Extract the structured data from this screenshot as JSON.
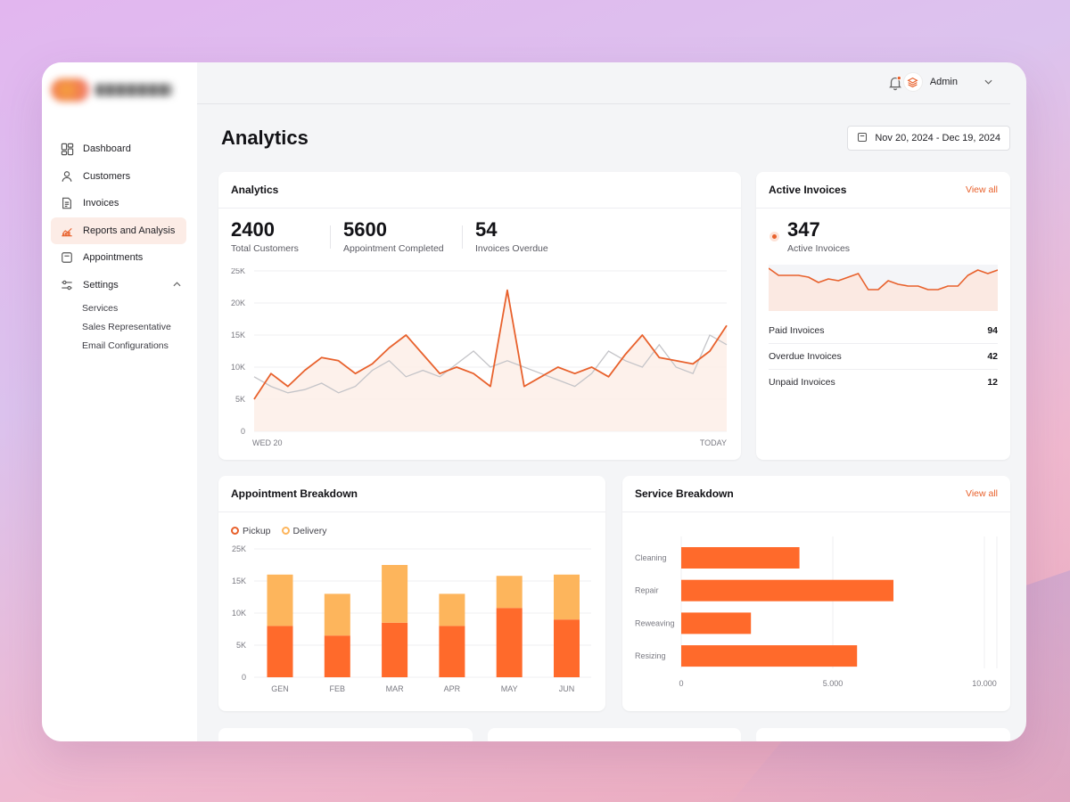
{
  "sidebar": {
    "items": [
      {
        "label": "Dashboard",
        "icon": "dashboard-icon"
      },
      {
        "label": "Customers",
        "icon": "user-icon"
      },
      {
        "label": "Invoices",
        "icon": "invoice-icon"
      },
      {
        "label": "Reports and Analysis",
        "icon": "chart-icon"
      },
      {
        "label": "Appointments",
        "icon": "calendar-icon"
      }
    ],
    "settings": {
      "label": "Settings",
      "subitems": [
        "Services",
        "Sales Representative",
        "Email Configurations"
      ]
    }
  },
  "header": {
    "user": "Admin"
  },
  "page": {
    "title": "Analytics",
    "date_range": "Nov 20, 2024 - Dec 19, 2024"
  },
  "analytics": {
    "title": "Analytics",
    "stats": [
      {
        "value": "2400",
        "label": "Total Customers"
      },
      {
        "value": "5600",
        "label": "Appointment Completed"
      },
      {
        "value": "54",
        "label": "Invoices Overdue"
      }
    ]
  },
  "active_invoices": {
    "title": "Active Invoices",
    "view_all": "View all",
    "count": "347",
    "count_label": "Active Invoices",
    "rows": [
      {
        "label": "Paid Invoices",
        "value": "94"
      },
      {
        "label": "Overdue Invoices",
        "value": "42"
      },
      {
        "label": "Unpaid Invoices",
        "value": "12"
      }
    ]
  },
  "appointment_breakdown": {
    "title": "Appointment Breakdown",
    "legend": [
      "Pickup",
      "Delivery"
    ]
  },
  "service_breakdown": {
    "title": "Service Breakdown",
    "view_all": "View all"
  },
  "colors": {
    "accent": "#e8612c",
    "bar_primary": "#ff6a2b",
    "bar_secondary": "#fdb55c",
    "muted_line": "#c4c4c8"
  },
  "chart_data": [
    {
      "type": "line",
      "title": "",
      "x_labels": [
        "WED 20",
        "TODAY"
      ],
      "yticks": [
        "25K",
        "20K",
        "15K",
        "10K",
        "5K",
        "0"
      ],
      "ylim": [
        0,
        25000
      ],
      "grid": true,
      "series": [
        {
          "values": [
            5000,
            9000,
            7000,
            9500,
            11500,
            11000,
            9000,
            10500,
            13000,
            15000,
            12000,
            9000,
            10000,
            9000,
            7000,
            22000,
            7000,
            8500,
            10000,
            9000,
            10000,
            8500,
            12000,
            15000,
            11500,
            11000,
            10500,
            12500,
            16500
          ]
        },
        {
          "values": [
            8500,
            7000,
            6000,
            6500,
            7500,
            6000,
            7000,
            9500,
            11000,
            8500,
            9500,
            8500,
            10500,
            12500,
            10000,
            11000,
            10000,
            9000,
            8000,
            7000,
            9000,
            12500,
            11000,
            10000,
            13500,
            10000,
            9000,
            15000,
            13500
          ]
        }
      ]
    },
    {
      "type": "area",
      "title": "",
      "series": [
        {
          "values": [
            24,
            20,
            20,
            20,
            19,
            16,
            18,
            17,
            19,
            21,
            12,
            12,
            17,
            15,
            14,
            14,
            12,
            12,
            14,
            14,
            20,
            23,
            21,
            23
          ]
        }
      ]
    },
    {
      "type": "bar",
      "title": "",
      "categories": [
        "GEN",
        "FEB",
        "MAR",
        "APR",
        "MAY",
        "JUN"
      ],
      "yticks": [
        "25K",
        "15K",
        "10K",
        "5K",
        "0"
      ],
      "ylim": [
        0,
        20000
      ],
      "stacked": true,
      "series": [
        {
          "name": "Pickup",
          "values": [
            8000,
            6500,
            8500,
            8000,
            10800,
            9000
          ]
        },
        {
          "name": "Delivery",
          "values": [
            8000,
            6500,
            9000,
            5000,
            5000,
            7000
          ]
        }
      ]
    },
    {
      "type": "bar",
      "orientation": "horizontal",
      "title": "",
      "categories": [
        "Cleaning",
        "Repair",
        "Reweaving",
        "Resizing"
      ],
      "xticks": [
        "0",
        "5.000",
        "10.000"
      ],
      "xlim": [
        0,
        10000
      ],
      "values": [
        3900,
        7000,
        2300,
        5800
      ]
    }
  ]
}
